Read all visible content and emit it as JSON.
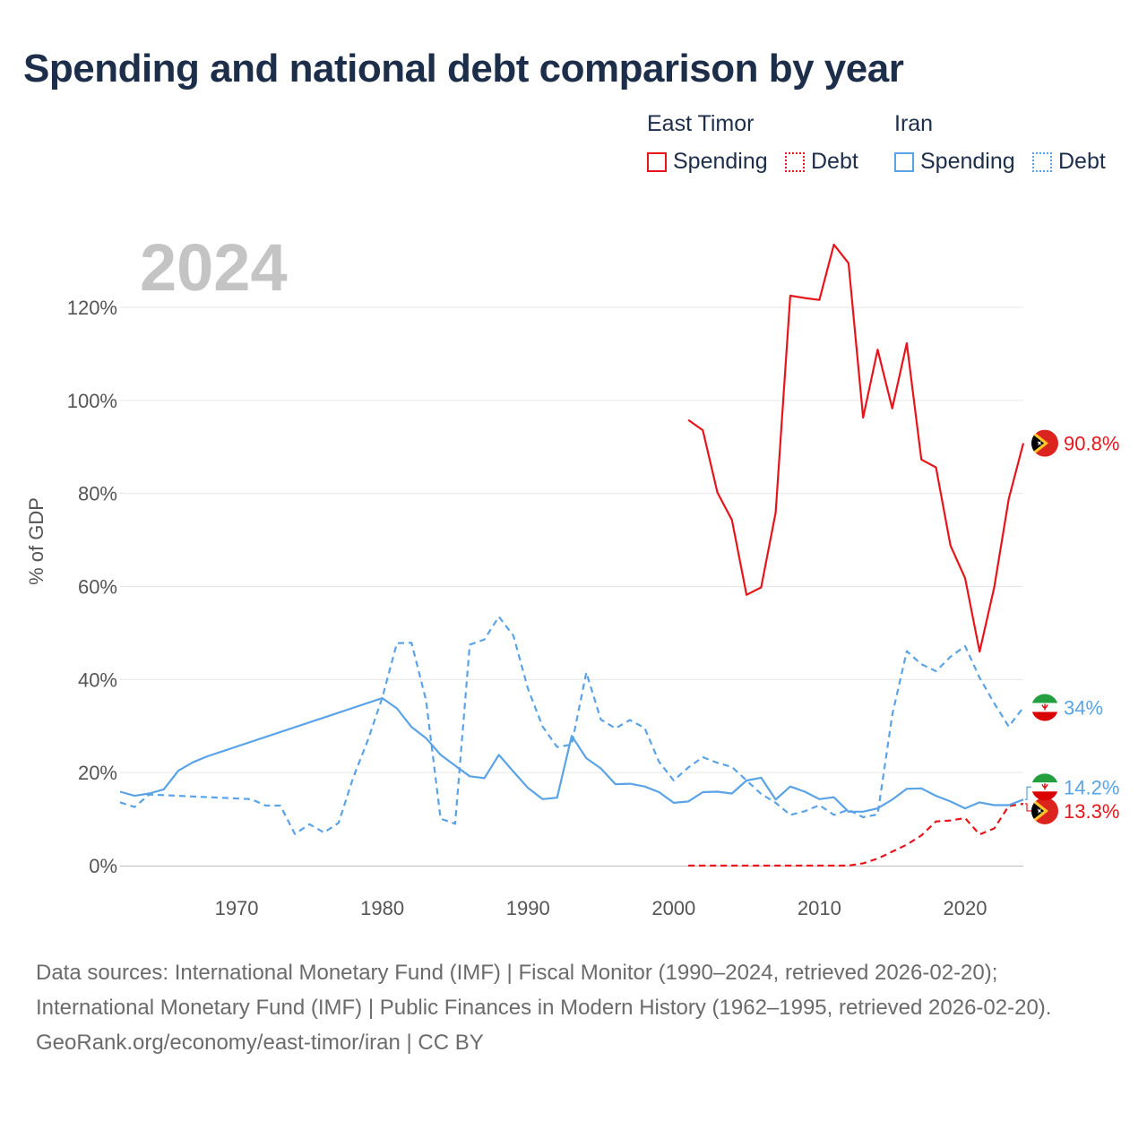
{
  "title": "Spending and national debt comparison by year",
  "legend": {
    "groups": [
      {
        "country": "East Timor",
        "color": "#e8141b",
        "items": [
          {
            "label": "Spending",
            "style": "solid"
          },
          {
            "label": "Debt",
            "style": "dotted"
          }
        ]
      },
      {
        "country": "Iran",
        "color": "#5aa3e6",
        "items": [
          {
            "label": "Spending",
            "style": "solid"
          },
          {
            "label": "Debt",
            "style": "dotted"
          }
        ]
      }
    ]
  },
  "year_label": "2024",
  "footer": {
    "sources": "Data sources: International Monetary Fund (IMF) | Fiscal Monitor (1990–2024, retrieved 2026-02-20); International Monetary Fund (IMF) | Public Finances in Modern History (1962–1995, retrieved 2026-02-20).",
    "credit": "GeoRank.org/economy/east-timor/iran | CC BY"
  },
  "chart_data": {
    "type": "line",
    "ylabel": "% of GDP",
    "xlim": [
      1962,
      2024
    ],
    "ylim": [
      0,
      130
    ],
    "yticks": [
      0,
      20,
      40,
      60,
      80,
      100,
      120
    ],
    "ytick_labels": [
      "0%",
      "20%",
      "40%",
      "60%",
      "80%",
      "100%",
      "120%"
    ],
    "xticks": [
      1970,
      1980,
      1990,
      2000,
      2010,
      2020
    ],
    "xtick_labels": [
      "1970",
      "1980",
      "1990",
      "2000",
      "2010",
      "2020"
    ],
    "series": [
      {
        "name": "East Timor Spending",
        "country": "East Timor",
        "metric": "Spending",
        "color": "#e8141b",
        "dash": "solid",
        "end_label": "90.8%",
        "points": [
          [
            2001,
            95.8
          ],
          [
            2002,
            93.6
          ],
          [
            2003,
            80.2
          ],
          [
            2004,
            74.3
          ],
          [
            2005,
            58.2
          ],
          [
            2006,
            59.8
          ],
          [
            2007,
            75.9
          ],
          [
            2008,
            122.5
          ],
          [
            2009,
            122.0
          ],
          [
            2010,
            121.6
          ],
          [
            2011,
            133.5
          ],
          [
            2012,
            129.5
          ],
          [
            2013,
            96.3
          ],
          [
            2014,
            110.9
          ],
          [
            2015,
            98.3
          ],
          [
            2016,
            112.3
          ],
          [
            2017,
            87.3
          ],
          [
            2018,
            85.6
          ],
          [
            2019,
            68.8
          ],
          [
            2020,
            61.8
          ],
          [
            2021,
            46.0
          ],
          [
            2022,
            59.8
          ],
          [
            2023,
            78.8
          ],
          [
            2024,
            90.8
          ]
        ]
      },
      {
        "name": "East Timor Debt",
        "country": "East Timor",
        "metric": "Debt",
        "color": "#e8141b",
        "dash": "dashed",
        "end_label": "13.3%",
        "points": [
          [
            2001,
            0
          ],
          [
            2002,
            0
          ],
          [
            2003,
            0
          ],
          [
            2004,
            0
          ],
          [
            2005,
            0
          ],
          [
            2006,
            0
          ],
          [
            2007,
            0
          ],
          [
            2008,
            0
          ],
          [
            2009,
            0
          ],
          [
            2010,
            0
          ],
          [
            2011,
            0
          ],
          [
            2012,
            0
          ],
          [
            2013,
            0.5
          ],
          [
            2014,
            1.5
          ],
          [
            2015,
            3.0
          ],
          [
            2016,
            4.5
          ],
          [
            2017,
            6.5
          ],
          [
            2018,
            9.5
          ],
          [
            2019,
            9.7
          ],
          [
            2020,
            10.2
          ],
          [
            2021,
            6.7
          ],
          [
            2022,
            8.0
          ],
          [
            2023,
            12.8
          ],
          [
            2024,
            13.3
          ]
        ]
      },
      {
        "name": "Iran Spending",
        "country": "Iran",
        "metric": "Spending",
        "color": "#5aa3e6",
        "dash": "solid",
        "end_label": "14.2%",
        "points": [
          [
            1962,
            15.9
          ],
          [
            1963,
            15.0
          ],
          [
            1964,
            15.5
          ],
          [
            1965,
            16.4
          ],
          [
            1966,
            20.4
          ],
          [
            1967,
            22.2
          ],
          [
            1968,
            23.5
          ],
          [
            1980,
            36.0
          ],
          [
            1981,
            33.8
          ],
          [
            1982,
            29.8
          ],
          [
            1983,
            27.4
          ],
          [
            1984,
            23.8
          ],
          [
            1985,
            21.5
          ],
          [
            1986,
            19.2
          ],
          [
            1987,
            18.8
          ],
          [
            1988,
            23.8
          ],
          [
            1989,
            20.2
          ],
          [
            1990,
            16.7
          ],
          [
            1991,
            14.3
          ],
          [
            1992,
            14.6
          ],
          [
            1993,
            27.9
          ],
          [
            1994,
            23.1
          ],
          [
            1995,
            20.9
          ],
          [
            1996,
            17.5
          ],
          [
            1997,
            17.6
          ],
          [
            1998,
            17.0
          ],
          [
            1999,
            15.8
          ],
          [
            2000,
            13.5
          ],
          [
            2001,
            13.8
          ],
          [
            2002,
            15.8
          ],
          [
            2003,
            15.9
          ],
          [
            2004,
            15.5
          ],
          [
            2005,
            18.3
          ],
          [
            2006,
            18.9
          ],
          [
            2007,
            14.2
          ],
          [
            2008,
            17.0
          ],
          [
            2009,
            15.9
          ],
          [
            2010,
            14.3
          ],
          [
            2011,
            14.7
          ],
          [
            2012,
            11.6
          ],
          [
            2013,
            11.6
          ],
          [
            2014,
            12.3
          ],
          [
            2015,
            14.2
          ],
          [
            2016,
            16.5
          ],
          [
            2017,
            16.6
          ],
          [
            2018,
            15.0
          ],
          [
            2019,
            13.8
          ],
          [
            2020,
            12.3
          ],
          [
            2021,
            13.6
          ],
          [
            2022,
            13.0
          ],
          [
            2023,
            13.0
          ],
          [
            2024,
            14.2
          ]
        ]
      },
      {
        "name": "Iran Debt",
        "country": "Iran",
        "metric": "Debt",
        "color": "#5aa3e6",
        "dash": "dashed",
        "end_label": "34%",
        "points": [
          [
            1962,
            13.6
          ],
          [
            1963,
            12.6
          ],
          [
            1964,
            15.3
          ],
          [
            1971,
            14.3
          ],
          [
            1972,
            12.9
          ],
          [
            1973,
            12.9
          ],
          [
            1974,
            6.8
          ],
          [
            1975,
            8.9
          ],
          [
            1976,
            7.1
          ],
          [
            1977,
            9.2
          ],
          [
            1978,
            18.9
          ],
          [
            1979,
            26.9
          ],
          [
            1980,
            36.1
          ],
          [
            1981,
            47.8
          ],
          [
            1982,
            47.9
          ],
          [
            1983,
            35.6
          ],
          [
            1984,
            10.1
          ],
          [
            1985,
            9.0
          ],
          [
            1986,
            47.5
          ],
          [
            1987,
            48.6
          ],
          [
            1988,
            53.5
          ],
          [
            1989,
            49.4
          ],
          [
            1990,
            38.0
          ],
          [
            1991,
            29.9
          ],
          [
            1992,
            25.5
          ],
          [
            1993,
            26.0
          ],
          [
            1994,
            41.5
          ],
          [
            1995,
            31.4
          ],
          [
            1996,
            29.5
          ],
          [
            1997,
            31.3
          ],
          [
            1998,
            29.6
          ],
          [
            1999,
            22.3
          ],
          [
            2000,
            18.3
          ],
          [
            2001,
            21.1
          ],
          [
            2002,
            23.3
          ],
          [
            2003,
            22.1
          ],
          [
            2004,
            21.2
          ],
          [
            2005,
            18.3
          ],
          [
            2006,
            15.4
          ],
          [
            2007,
            13.5
          ],
          [
            2008,
            10.9
          ],
          [
            2009,
            11.7
          ],
          [
            2010,
            13.0
          ],
          [
            2011,
            10.9
          ],
          [
            2012,
            12.0
          ],
          [
            2013,
            10.4
          ],
          [
            2014,
            11.0
          ],
          [
            2015,
            32.4
          ],
          [
            2016,
            46.1
          ],
          [
            2017,
            43.3
          ],
          [
            2018,
            41.8
          ],
          [
            2019,
            44.9
          ],
          [
            2020,
            47.2
          ],
          [
            2021,
            40.4
          ],
          [
            2022,
            34.9
          ],
          [
            2023,
            29.9
          ],
          [
            2024,
            34.0
          ]
        ]
      }
    ]
  }
}
